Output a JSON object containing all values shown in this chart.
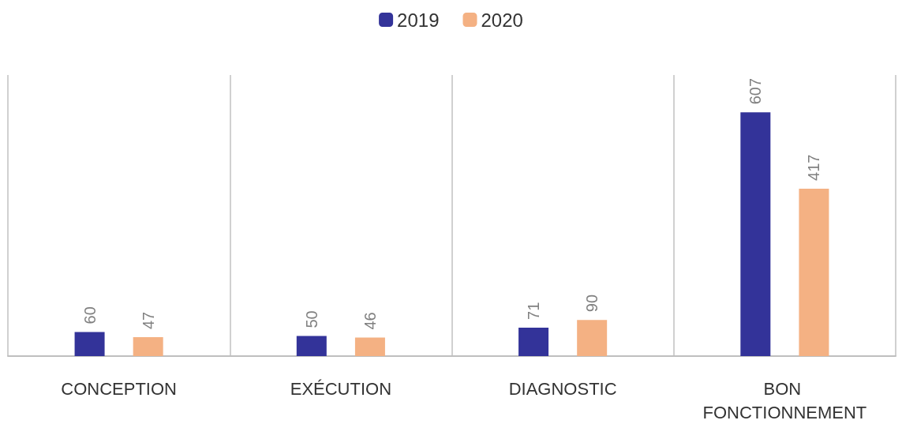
{
  "chart_data": {
    "type": "bar",
    "categories": [
      "CONCEPTION",
      "EXÉCUTION",
      "DIAGNOSTIC",
      "BON FONCTIONNEMENT"
    ],
    "series": [
      {
        "name": "2019",
        "color": "#333399",
        "values": [
          60,
          50,
          71,
          607
        ]
      },
      {
        "name": "2020",
        "color": "#f4b183",
        "values": [
          47,
          46,
          90,
          417
        ]
      }
    ],
    "data_labels": true,
    "grid": "x",
    "legend": "top"
  }
}
